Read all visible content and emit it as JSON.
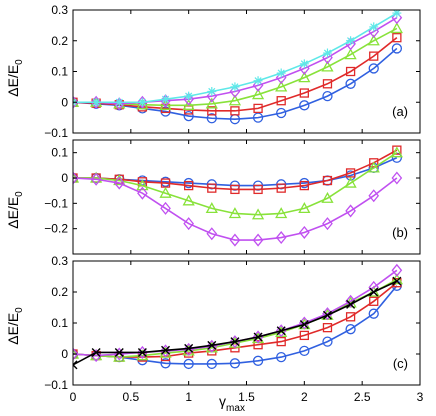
{
  "figure": {
    "xlabel_main": "γ",
    "xlabel_sub": "max",
    "ylabel_main": "ΔE/E",
    "ylabel_sub": "0"
  },
  "colors": {
    "blue": "#3060e0",
    "red": "#e02a2a",
    "green": "#88e23a",
    "magenta": "#c050f0",
    "cyan": "#5ee8e8",
    "black": "#000000"
  },
  "chart_data": [
    {
      "type": "line",
      "panel_label": "(a)",
      "xlim": [
        0,
        3
      ],
      "ylim": [
        -0.1,
        0.3
      ],
      "xticks": [
        0,
        0.5,
        1,
        1.5,
        2,
        2.5,
        3
      ],
      "yticks": [
        -0.1,
        0,
        0.1,
        0.2,
        0.3
      ],
      "ytick_labels": [
        "−0.1",
        "0",
        "0.1",
        "0.2",
        "0.3"
      ],
      "x": [
        0,
        0.2,
        0.4,
        0.6,
        0.8,
        1.0,
        1.2,
        1.4,
        1.6,
        1.8,
        2.0,
        2.2,
        2.4,
        2.6,
        2.8
      ],
      "series": [
        {
          "color": "blue",
          "marker": "circle",
          "values": [
            0,
            -0.005,
            -0.01,
            -0.02,
            -0.03,
            -0.045,
            -0.052,
            -0.055,
            -0.05,
            -0.035,
            -0.01,
            0.02,
            0.06,
            0.11,
            0.175
          ]
        },
        {
          "color": "red",
          "marker": "square",
          "values": [
            0,
            -0.003,
            -0.008,
            -0.015,
            -0.02,
            -0.025,
            -0.028,
            -0.028,
            -0.02,
            0.005,
            0.03,
            0.06,
            0.1,
            0.15,
            0.21
          ]
        },
        {
          "color": "green",
          "marker": "triangle",
          "values": [
            0,
            0,
            -0.005,
            -0.008,
            -0.01,
            -0.01,
            -0.005,
            0.005,
            0.025,
            0.05,
            0.08,
            0.115,
            0.155,
            0.2,
            0.24
          ]
        },
        {
          "color": "magenta",
          "marker": "diamond",
          "values": [
            0,
            0,
            -0.005,
            0,
            0.005,
            0.01,
            0.02,
            0.035,
            0.055,
            0.08,
            0.11,
            0.145,
            0.19,
            0.23,
            0.275
          ]
        },
        {
          "color": "cyan",
          "marker": "star",
          "values": [
            0,
            0,
            0,
            0,
            0.01,
            0.02,
            0.035,
            0.05,
            0.07,
            0.095,
            0.125,
            0.16,
            0.2,
            0.245,
            0.29
          ]
        }
      ]
    },
    {
      "type": "line",
      "panel_label": "(b)",
      "xlim": [
        0,
        3
      ],
      "ylim": [
        -0.3,
        0.15
      ],
      "xticks": [
        0,
        0.5,
        1,
        1.5,
        2,
        2.5,
        3
      ],
      "yticks": [
        -0.2,
        -0.1,
        0,
        0.1
      ],
      "ytick_labels": [
        "−0.2",
        "−0.1",
        "0",
        "0.1"
      ],
      "x": [
        0,
        0.2,
        0.4,
        0.6,
        0.8,
        1.0,
        1.2,
        1.4,
        1.6,
        1.8,
        2.0,
        2.2,
        2.4,
        2.6,
        2.8
      ],
      "series": [
        {
          "color": "blue",
          "marker": "circle",
          "values": [
            0,
            0,
            -0.005,
            -0.01,
            -0.015,
            -0.02,
            -0.025,
            -0.03,
            -0.03,
            -0.025,
            -0.02,
            -0.01,
            0.01,
            0.04,
            0.08
          ]
        },
        {
          "color": "red",
          "marker": "square",
          "values": [
            0,
            0,
            -0.005,
            -0.015,
            -0.02,
            -0.03,
            -0.04,
            -0.045,
            -0.045,
            -0.04,
            -0.03,
            -0.01,
            0.02,
            0.06,
            0.11
          ]
        },
        {
          "color": "green",
          "marker": "triangle",
          "values": [
            0,
            0,
            -0.01,
            -0.03,
            -0.06,
            -0.09,
            -0.12,
            -0.14,
            -0.145,
            -0.14,
            -0.12,
            -0.08,
            -0.02,
            0.04,
            0.1
          ]
        },
        {
          "color": "magenta",
          "marker": "diamond",
          "values": [
            0,
            -0.005,
            -0.02,
            -0.06,
            -0.12,
            -0.18,
            -0.22,
            -0.245,
            -0.245,
            -0.235,
            -0.215,
            -0.18,
            -0.13,
            -0.07,
            0
          ]
        }
      ]
    },
    {
      "type": "line",
      "panel_label": "(c)",
      "xlim": [
        0,
        3
      ],
      "ylim": [
        -0.1,
        0.3
      ],
      "xticks": [
        0,
        0.5,
        1,
        1.5,
        2,
        2.5,
        3
      ],
      "xtick_labels": [
        "0",
        "0.5",
        "1",
        "1.5",
        "2",
        "2.5",
        "3"
      ],
      "yticks": [
        -0.1,
        0,
        0.1,
        0.2,
        0.3
      ],
      "ytick_labels": [
        "−0.1",
        "0",
        "0.1",
        "0.2",
        "0.3"
      ],
      "x": [
        0,
        0.2,
        0.4,
        0.6,
        0.8,
        1.0,
        1.2,
        1.4,
        1.6,
        1.8,
        2.0,
        2.2,
        2.4,
        2.6,
        2.8
      ],
      "series": [
        {
          "color": "blue",
          "marker": "circle",
          "values": [
            0,
            -0.005,
            -0.01,
            -0.02,
            -0.03,
            -0.032,
            -0.032,
            -0.03,
            -0.022,
            -0.01,
            0.01,
            0.04,
            0.08,
            0.13,
            0.22
          ]
        },
        {
          "color": "red",
          "marker": "square",
          "values": [
            0,
            -0.005,
            -0.01,
            -0.01,
            -0.008,
            0.003,
            0.01,
            0.02,
            0.03,
            0.04,
            0.06,
            0.085,
            0.12,
            0.17,
            0.23
          ]
        },
        {
          "color": "green",
          "marker": "triangle",
          "values": [
            0,
            -0.005,
            -0.01,
            -0.005,
            0.003,
            0.01,
            0.02,
            0.035,
            0.05,
            0.07,
            0.095,
            0.125,
            0.165,
            0.2,
            0.24
          ]
        },
        {
          "color": "magenta",
          "marker": "diamond",
          "values": [
            0,
            -0.005,
            0,
            0.005,
            0.01,
            0.015,
            0.025,
            0.04,
            0.055,
            0.075,
            0.1,
            0.13,
            0.17,
            0.215,
            0.27
          ]
        },
        {
          "color": "black",
          "marker": "x",
          "values": [
            -0.035,
            0.005,
            0.005,
            0.005,
            0.012,
            0.018,
            0.028,
            0.04,
            0.055,
            0.075,
            0.095,
            0.125,
            0.16,
            0.2,
            0.235
          ]
        }
      ]
    }
  ]
}
